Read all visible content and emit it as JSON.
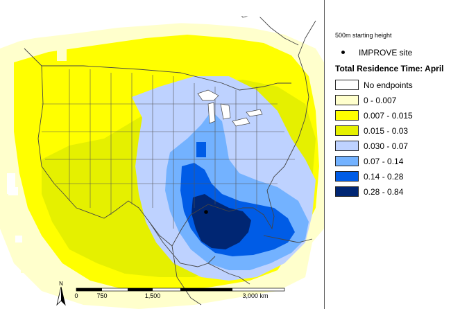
{
  "legend": {
    "subtitle": "500m starting height",
    "site_label": "IMPROVE site",
    "title": "Total Residence Time: April",
    "classes": [
      {
        "label": "No endpoints",
        "color": "#ffffff"
      },
      {
        "label": "0 - 0.007",
        "color": "#ffffcc"
      },
      {
        "label": "0.007 - 0.015",
        "color": "#ffff00"
      },
      {
        "label": "0.015 - 0.03",
        "color": "#e5f000"
      },
      {
        "label": "0.030 - 0.07",
        "color": "#bed2ff"
      },
      {
        "label": "0.07 - 0.14",
        "color": "#73b2ff"
      },
      {
        "label": "0.14 - 0.28",
        "color": "#005ce6"
      },
      {
        "label": "0.28 - 0.84",
        "color": "#002673"
      }
    ]
  },
  "scalebar": {
    "labels": [
      "0",
      "750",
      "1,500",
      "3,000 km"
    ]
  },
  "north_arrow": {
    "label": "N"
  },
  "icons": {
    "site_marker": "site-dot-icon",
    "north": "north-arrow-icon"
  }
}
